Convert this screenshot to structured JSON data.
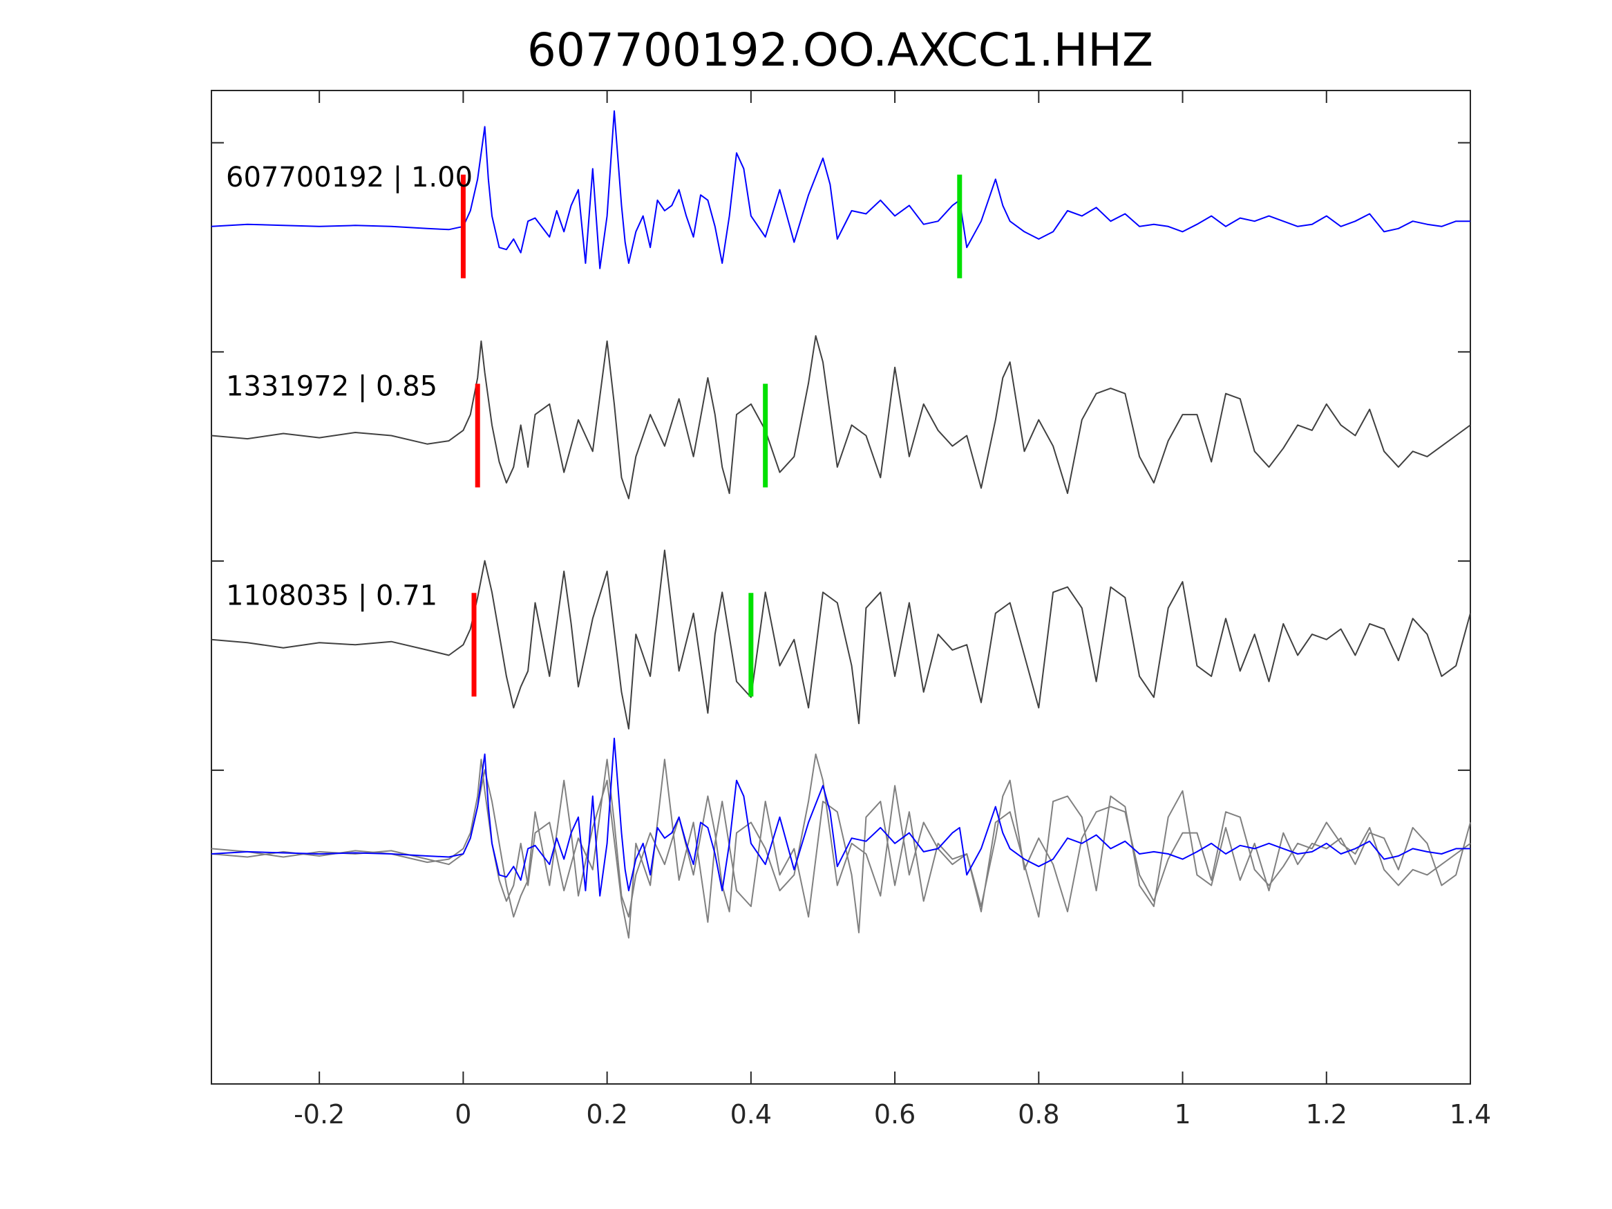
{
  "chart_data": {
    "type": "line",
    "title": "607700192.OO.AXCC1.HHZ",
    "xlabel": "",
    "ylabel": "",
    "xlim": [
      -0.35,
      1.4
    ],
    "x_ticks": [
      -0.2,
      0,
      0.2,
      0.4,
      0.6,
      0.8,
      1,
      1.2,
      1.4
    ],
    "x_tick_labels": [
      "-0.2",
      "0",
      "0.2",
      "0.4",
      "0.6",
      "0.8",
      "1",
      "1.2",
      "1.4"
    ],
    "ylim": [
      -1.25,
      3.5
    ],
    "grid": false,
    "colors": {
      "master": "#0000ff",
      "trace": "#404040",
      "overlay": "#808080",
      "p_pick": "#ff0000",
      "s_pick": "#00e000"
    },
    "traces": [
      {
        "id": "607700192",
        "label": "607700192 | 1.00",
        "offset": 3,
        "color": "#0000ff",
        "p_pick": 0.0,
        "s_pick": 0.69,
        "x": [
          -0.35,
          -0.3,
          -0.25,
          -0.2,
          -0.15,
          -0.1,
          -0.05,
          -0.02,
          0.0,
          0.01,
          0.02,
          0.03,
          0.035,
          0.04,
          0.05,
          0.06,
          0.07,
          0.08,
          0.09,
          0.1,
          0.12,
          0.13,
          0.14,
          0.15,
          0.16,
          0.17,
          0.18,
          0.19,
          0.2,
          0.21,
          0.22,
          0.225,
          0.23,
          0.24,
          0.25,
          0.26,
          0.27,
          0.28,
          0.29,
          0.3,
          0.31,
          0.32,
          0.33,
          0.34,
          0.35,
          0.36,
          0.37,
          0.38,
          0.39,
          0.4,
          0.42,
          0.44,
          0.46,
          0.48,
          0.5,
          0.51,
          0.52,
          0.54,
          0.56,
          0.58,
          0.6,
          0.62,
          0.64,
          0.66,
          0.68,
          0.69,
          0.7,
          0.72,
          0.74,
          0.75,
          0.76,
          0.78,
          0.8,
          0.82,
          0.84,
          0.86,
          0.88,
          0.9,
          0.92,
          0.94,
          0.96,
          0.98,
          1.0,
          1.02,
          1.04,
          1.06,
          1.08,
          1.1,
          1.12,
          1.14,
          1.16,
          1.18,
          1.2,
          1.22,
          1.24,
          1.26,
          1.28,
          1.3,
          1.32,
          1.34,
          1.36,
          1.38,
          1.4
        ],
        "y": [
          0.0,
          0.02,
          0.01,
          0.0,
          0.01,
          0.0,
          -0.02,
          -0.03,
          0.0,
          0.15,
          0.45,
          0.95,
          0.45,
          0.1,
          -0.2,
          -0.22,
          -0.12,
          -0.25,
          0.05,
          0.08,
          -0.1,
          0.15,
          -0.05,
          0.2,
          0.35,
          -0.35,
          0.55,
          -0.4,
          0.1,
          1.1,
          0.2,
          -0.15,
          -0.35,
          -0.05,
          0.1,
          -0.2,
          0.25,
          0.15,
          0.2,
          0.35,
          0.1,
          -0.1,
          0.3,
          0.25,
          0.0,
          -0.35,
          0.1,
          0.7,
          0.55,
          0.1,
          -0.1,
          0.35,
          -0.15,
          0.3,
          0.65,
          0.4,
          -0.12,
          0.15,
          0.12,
          0.25,
          0.1,
          0.2,
          0.02,
          0.05,
          0.2,
          0.25,
          -0.2,
          0.05,
          0.45,
          0.2,
          0.05,
          -0.05,
          -0.12,
          -0.05,
          0.15,
          0.1,
          0.18,
          0.05,
          0.12,
          0.0,
          0.02,
          0.0,
          -0.05,
          0.02,
          0.1,
          0.0,
          0.08,
          0.05,
          0.1,
          0.05,
          0.0,
          0.02,
          0.1,
          0.0,
          0.05,
          0.12,
          -0.05,
          -0.02,
          0.05,
          0.02,
          0.0,
          0.05,
          0.05
        ]
      },
      {
        "id": "1331972",
        "label": "1331972 | 0.85",
        "offset": 2,
        "color": "#404040",
        "p_pick": 0.02,
        "s_pick": 0.42,
        "x": [
          -0.35,
          -0.3,
          -0.25,
          -0.2,
          -0.15,
          -0.1,
          -0.05,
          -0.02,
          0.0,
          0.01,
          0.02,
          0.025,
          0.03,
          0.04,
          0.05,
          0.06,
          0.07,
          0.08,
          0.09,
          0.1,
          0.12,
          0.14,
          0.16,
          0.18,
          0.2,
          0.21,
          0.22,
          0.23,
          0.24,
          0.26,
          0.28,
          0.3,
          0.32,
          0.34,
          0.35,
          0.36,
          0.37,
          0.38,
          0.4,
          0.42,
          0.44,
          0.46,
          0.48,
          0.49,
          0.5,
          0.52,
          0.54,
          0.56,
          0.58,
          0.6,
          0.62,
          0.64,
          0.66,
          0.68,
          0.7,
          0.72,
          0.74,
          0.75,
          0.76,
          0.78,
          0.8,
          0.82,
          0.84,
          0.86,
          0.88,
          0.9,
          0.92,
          0.94,
          0.96,
          0.98,
          1.0,
          1.02,
          1.04,
          1.06,
          1.08,
          1.1,
          1.12,
          1.14,
          1.16,
          1.18,
          1.2,
          1.22,
          1.24,
          1.26,
          1.28,
          1.3,
          1.32,
          1.34,
          1.36,
          1.38,
          1.4
        ],
        "y": [
          0.0,
          -0.03,
          0.02,
          -0.02,
          0.03,
          0.0,
          -0.08,
          -0.05,
          0.05,
          0.2,
          0.55,
          0.9,
          0.6,
          0.1,
          -0.25,
          -0.45,
          -0.3,
          0.1,
          -0.3,
          0.2,
          0.3,
          -0.35,
          0.15,
          -0.15,
          0.9,
          0.3,
          -0.4,
          -0.6,
          -0.2,
          0.2,
          -0.1,
          0.35,
          -0.2,
          0.55,
          0.2,
          -0.3,
          -0.55,
          0.2,
          0.3,
          0.05,
          -0.35,
          -0.2,
          0.5,
          0.95,
          0.7,
          -0.3,
          0.1,
          0.0,
          -0.4,
          0.65,
          -0.2,
          0.3,
          0.05,
          -0.1,
          0.0,
          -0.5,
          0.15,
          0.55,
          0.7,
          -0.15,
          0.15,
          -0.1,
          -0.55,
          0.15,
          0.4,
          0.45,
          0.4,
          -0.2,
          -0.45,
          -0.05,
          0.2,
          0.2,
          -0.25,
          0.4,
          0.35,
          -0.15,
          -0.3,
          -0.12,
          0.1,
          0.05,
          0.3,
          0.1,
          0.0,
          0.25,
          -0.15,
          -0.3,
          -0.15,
          -0.2,
          -0.1,
          0.0,
          0.1
        ]
      },
      {
        "id": "1108035",
        "label": "1108035 | 0.71",
        "offset": 1,
        "color": "#404040",
        "p_pick": 0.015,
        "s_pick": 0.4,
        "x": [
          -0.35,
          -0.3,
          -0.25,
          -0.2,
          -0.15,
          -0.1,
          -0.05,
          -0.02,
          0.0,
          0.01,
          0.02,
          0.03,
          0.04,
          0.05,
          0.06,
          0.07,
          0.08,
          0.09,
          0.1,
          0.12,
          0.14,
          0.15,
          0.16,
          0.18,
          0.2,
          0.22,
          0.23,
          0.24,
          0.26,
          0.28,
          0.3,
          0.32,
          0.34,
          0.35,
          0.36,
          0.38,
          0.4,
          0.41,
          0.42,
          0.44,
          0.46,
          0.48,
          0.5,
          0.52,
          0.54,
          0.55,
          0.56,
          0.58,
          0.6,
          0.62,
          0.64,
          0.66,
          0.68,
          0.7,
          0.72,
          0.74,
          0.76,
          0.78,
          0.8,
          0.82,
          0.84,
          0.86,
          0.88,
          0.9,
          0.92,
          0.94,
          0.96,
          0.98,
          1.0,
          1.02,
          1.04,
          1.06,
          1.08,
          1.1,
          1.12,
          1.14,
          1.16,
          1.18,
          1.2,
          1.22,
          1.24,
          1.26,
          1.28,
          1.3,
          1.32,
          1.34,
          1.36,
          1.38,
          1.4
        ],
        "y": [
          0.05,
          0.02,
          -0.03,
          0.02,
          0.0,
          0.03,
          -0.05,
          -0.1,
          0.0,
          0.15,
          0.45,
          0.8,
          0.5,
          0.1,
          -0.3,
          -0.6,
          -0.4,
          -0.25,
          0.4,
          -0.3,
          0.7,
          0.2,
          -0.4,
          0.25,
          0.7,
          -0.45,
          -0.8,
          0.1,
          -0.3,
          0.9,
          -0.25,
          0.3,
          -0.65,
          0.1,
          0.5,
          -0.35,
          -0.5,
          0.0,
          0.5,
          -0.2,
          0.05,
          -0.6,
          0.5,
          0.4,
          -0.2,
          -0.75,
          0.35,
          0.5,
          -0.3,
          0.4,
          -0.45,
          0.1,
          -0.05,
          0.0,
          -0.55,
          0.3,
          0.4,
          -0.1,
          -0.6,
          0.5,
          0.55,
          0.35,
          -0.35,
          0.55,
          0.45,
          -0.3,
          -0.5,
          0.35,
          0.6,
          -0.2,
          -0.3,
          0.25,
          -0.25,
          0.1,
          -0.35,
          0.2,
          -0.1,
          0.1,
          0.05,
          0.15,
          -0.1,
          0.2,
          0.15,
          -0.15,
          0.25,
          0.1,
          -0.3,
          -0.2,
          0.3
        ]
      }
    ],
    "overlay": {
      "offset": 0,
      "description": "all traces overlaid",
      "members": [
        "607700192",
        "1331972",
        "1108035"
      ]
    }
  }
}
